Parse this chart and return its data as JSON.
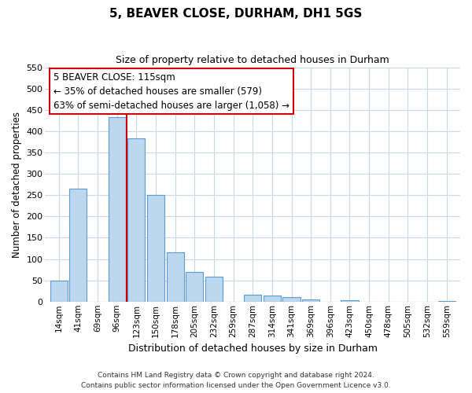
{
  "title": "5, BEAVER CLOSE, DURHAM, DH1 5GS",
  "subtitle": "Size of property relative to detached houses in Durham",
  "xlabel": "Distribution of detached houses by size in Durham",
  "ylabel": "Number of detached properties",
  "bar_labels": [
    "14sqm",
    "41sqm",
    "69sqm",
    "96sqm",
    "123sqm",
    "150sqm",
    "178sqm",
    "205sqm",
    "232sqm",
    "259sqm",
    "287sqm",
    "314sqm",
    "341sqm",
    "369sqm",
    "396sqm",
    "423sqm",
    "450sqm",
    "478sqm",
    "505sqm",
    "532sqm",
    "559sqm"
  ],
  "bar_values": [
    50,
    265,
    0,
    433,
    383,
    250,
    115,
    70,
    58,
    0,
    16,
    14,
    10,
    6,
    0,
    4,
    0,
    0,
    0,
    0,
    1
  ],
  "bar_color": "#bdd7ee",
  "bar_edge_color": "#5b9bd5",
  "property_line_color": "#cc0000",
  "property_line_index": 3.5,
  "annotation_text": "5 BEAVER CLOSE: 115sqm\n← 35% of detached houses are smaller (579)\n63% of semi-detached houses are larger (1,058) →",
  "annotation_box_facecolor": "#ffffff",
  "annotation_box_edgecolor": "#cc0000",
  "ylim": [
    0,
    550
  ],
  "yticks": [
    0,
    50,
    100,
    150,
    200,
    250,
    300,
    350,
    400,
    450,
    500,
    550
  ],
  "footer_line1": "Contains HM Land Registry data © Crown copyright and database right 2024.",
  "footer_line2": "Contains public sector information licensed under the Open Government Licence v3.0.",
  "background_color": "#ffffff",
  "grid_color": "#c8d8e8",
  "figsize": [
    6.0,
    5.0
  ],
  "dpi": 100
}
